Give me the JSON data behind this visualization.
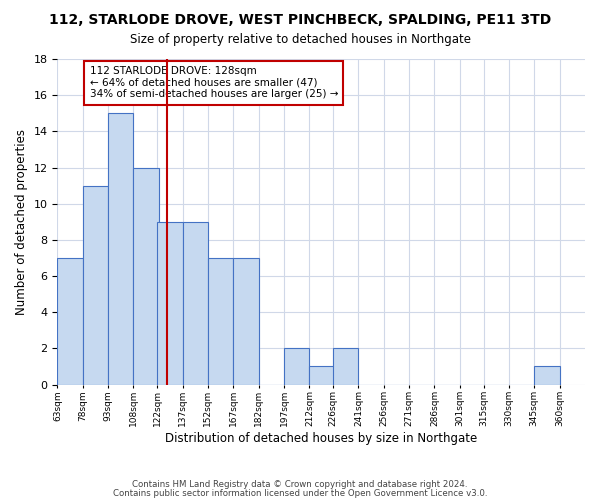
{
  "title": "112, STARLODE DROVE, WEST PINCHBECK, SPALDING, PE11 3TD",
  "subtitle": "Size of property relative to detached houses in Northgate",
  "xlabel": "Distribution of detached houses by size in Northgate",
  "ylabel": "Number of detached properties",
  "bar_values": [
    7,
    11,
    15,
    12,
    9,
    9,
    7,
    7,
    0,
    2,
    1,
    2,
    0,
    0,
    0,
    0,
    0,
    0,
    0,
    1
  ],
  "bin_labels": [
    "63sqm",
    "78sqm",
    "93sqm",
    "108sqm",
    "122sqm",
    "137sqm",
    "152sqm",
    "167sqm",
    "182sqm",
    "197sqm",
    "212sqm",
    "226sqm",
    "241sqm",
    "256sqm",
    "271sqm",
    "286sqm",
    "301sqm",
    "315sqm",
    "330sqm",
    "345sqm",
    "360sqm"
  ],
  "bin_edges": [
    63,
    78,
    93,
    108,
    122,
    137,
    152,
    167,
    182,
    197,
    212,
    226,
    241,
    256,
    271,
    286,
    301,
    315,
    330,
    345,
    360
  ],
  "bar_color": "#c6d9f0",
  "bar_edge_color": "#4472c4",
  "vline_x": 128,
  "vline_color": "#c00000",
  "annotation_title": "112 STARLODE DROVE: 128sqm",
  "annotation_line1": "← 64% of detached houses are smaller (47)",
  "annotation_line2": "34% of semi-detached houses are larger (25) →",
  "annotation_box_edge": "#c00000",
  "ylim": [
    0,
    18
  ],
  "yticks": [
    0,
    2,
    4,
    6,
    8,
    10,
    12,
    14,
    16,
    18
  ],
  "footer1": "Contains HM Land Registry data © Crown copyright and database right 2024.",
  "footer2": "Contains public sector information licensed under the Open Government Licence v3.0.",
  "background_color": "#ffffff",
  "grid_color": "#d0d8e8"
}
